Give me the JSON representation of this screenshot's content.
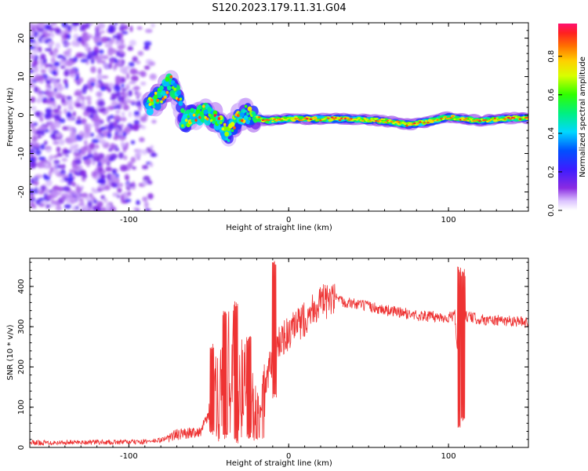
{
  "title": "S120.2023.179.11.31.G04",
  "chart_data": [
    {
      "type": "heatmap",
      "xlabel": "Height of straight line (km)",
      "ylabel": "Frequency (Hz)",
      "xlim": [
        -162,
        150
      ],
      "ylim": [
        -25,
        24
      ],
      "xticks": [
        -100,
        0,
        100
      ],
      "yticks": [
        -20,
        -10,
        0,
        10,
        20
      ],
      "xtick_labels": [
        "-100",
        "0",
        "100"
      ],
      "ytick_labels": [
        "-20",
        "-10",
        "0",
        "10",
        "20"
      ],
      "grid": false,
      "colorbar": {
        "label": "Normalized spectral amplitude",
        "range": [
          0,
          0.97
        ],
        "ticks": [
          0.0,
          0.2,
          0.4,
          0.6,
          0.8
        ],
        "tick_labels": [
          "0.0",
          "0.2",
          "0.4",
          "0.6",
          "0.8"
        ]
      },
      "features": {
        "noise_region": {
          "x_range": [
            -162,
            -80
          ],
          "y_range": [
            -25,
            24
          ],
          "amplitude": 0.15
        },
        "ridge_points": [
          [
            -88,
            2
          ],
          [
            -80,
            5
          ],
          [
            -74,
            8.5
          ],
          [
            -68,
            4
          ],
          [
            -66,
            -2
          ],
          [
            -60,
            0
          ],
          [
            -52,
            0.5
          ],
          [
            -45,
            -1
          ],
          [
            -38,
            -5
          ],
          [
            -32,
            -1
          ],
          [
            -27,
            0.5
          ],
          [
            -15,
            -1.5
          ],
          [
            0,
            -1
          ],
          [
            20,
            -1
          ],
          [
            40,
            -1
          ],
          [
            60,
            -1.5
          ],
          [
            75,
            -2.5
          ],
          [
            90,
            -1.5
          ],
          [
            100,
            -0.5
          ],
          [
            120,
            -1.5
          ],
          [
            140,
            -0.8
          ],
          [
            150,
            -0.8
          ]
        ],
        "ridge_amplitude": 0.9
      }
    },
    {
      "type": "line",
      "xlabel": "Height of straight line (km)",
      "ylabel": "SNR (10 * v/v)",
      "xlim": [
        -162,
        150
      ],
      "ylim": [
        0,
        470
      ],
      "xticks": [
        -100,
        0,
        100
      ],
      "yticks": [
        0,
        100,
        200,
        300,
        400
      ],
      "xtick_labels": [
        "-100",
        "0",
        "100"
      ],
      "ytick_labels": [
        "0",
        "100",
        "200",
        "300",
        "400"
      ],
      "grid": false,
      "series": [
        {
          "color": "#ee3333",
          "x": [
            -162,
            -150,
            -130,
            -110,
            -90,
            -80,
            -72,
            -65,
            -55,
            -48,
            -42,
            -36,
            -30,
            -24,
            -18,
            -12,
            -8,
            -4,
            0,
            5,
            10,
            15,
            20,
            25,
            30,
            40,
            50,
            60,
            70,
            80,
            90,
            100,
            104,
            106,
            108,
            110,
            112,
            120,
            130,
            140,
            150
          ],
          "y": [
            12,
            12,
            13,
            13,
            14,
            18,
            30,
            35,
            40,
            100,
            160,
            190,
            150,
            120,
            60,
            200,
            240,
            270,
            280,
            300,
            320,
            345,
            360,
            362,
            365,
            358,
            350,
            342,
            335,
            328,
            325,
            322,
            330,
            200,
            120,
            330,
            325,
            318,
            315,
            315,
            310
          ],
          "spikes": [
            {
              "x": -48,
              "min": 30,
              "max": 260
            },
            {
              "x": -40,
              "min": 20,
              "max": 340
            },
            {
              "x": -33,
              "min": 10,
              "max": 370
            },
            {
              "x": -25,
              "min": 20,
              "max": 280
            },
            {
              "x": -9,
              "min": 120,
              "max": 470
            },
            {
              "x": 107,
              "min": 40,
              "max": 455
            },
            {
              "x": 109,
              "min": 60,
              "max": 445
            }
          ]
        }
      ]
    }
  ]
}
